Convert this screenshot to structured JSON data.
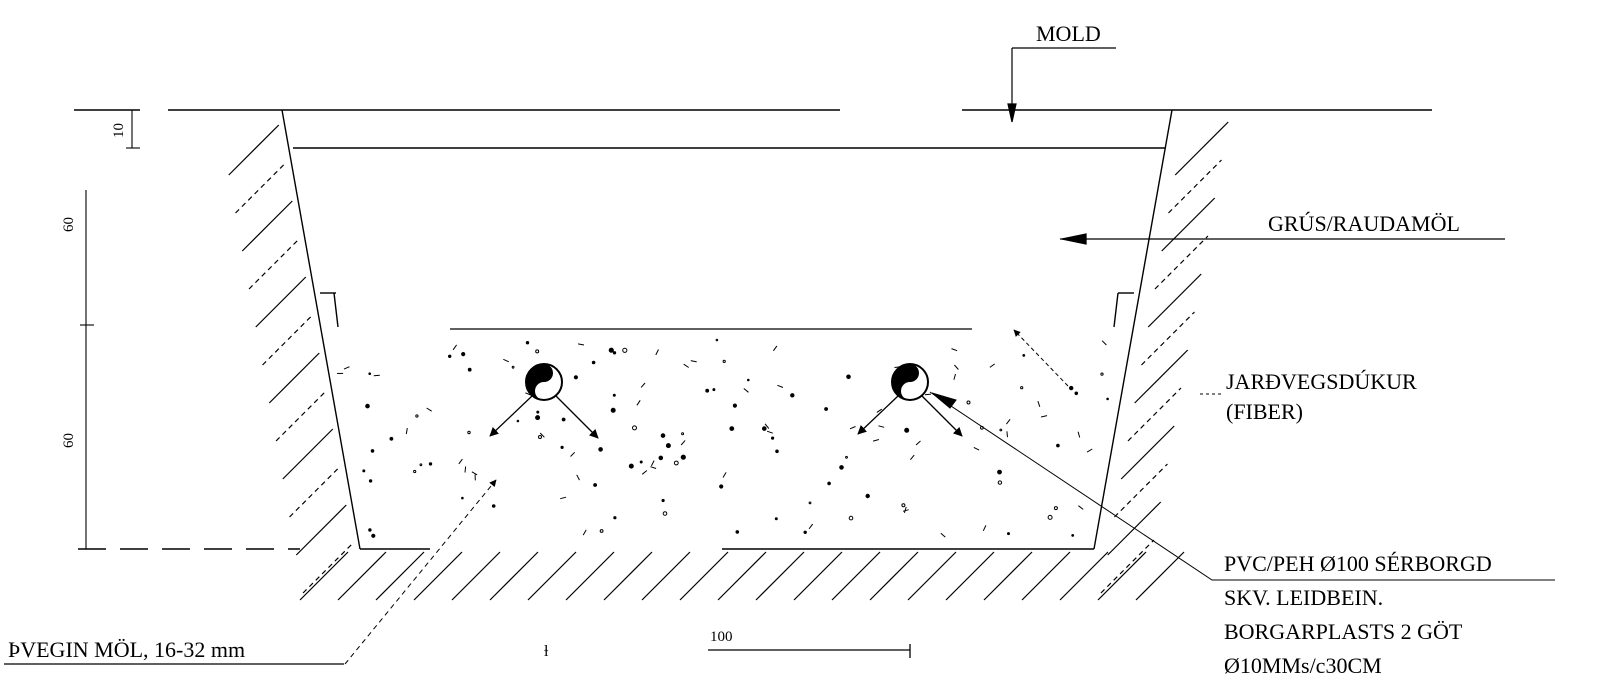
{
  "labels": {
    "mold": "MOLD",
    "grus": "GRÚS/RAUDAMÖL",
    "jardvegsdukur_line1": "JARÐVEGSDÚKUR",
    "jardvegsdukur_line2": "(FIBER)",
    "pipe_line1": "PVC/PEH Ø100 SÉRBORGD",
    "pipe_line2": "SKV. LEIDBEIN.",
    "pipe_line3": "BORGARPLASTS 2 GÖT",
    "pipe_line4": "Ø10MMs/c30CM",
    "gravel": "ÞVEGIN MÖL, 16-32 mm"
  },
  "dimensions": {
    "top_layer": "10",
    "upper_depth": "60",
    "lower_depth": "60",
    "scale_bar": "100"
  },
  "colors": {
    "ink": "#000000",
    "background": "#ffffff"
  }
}
